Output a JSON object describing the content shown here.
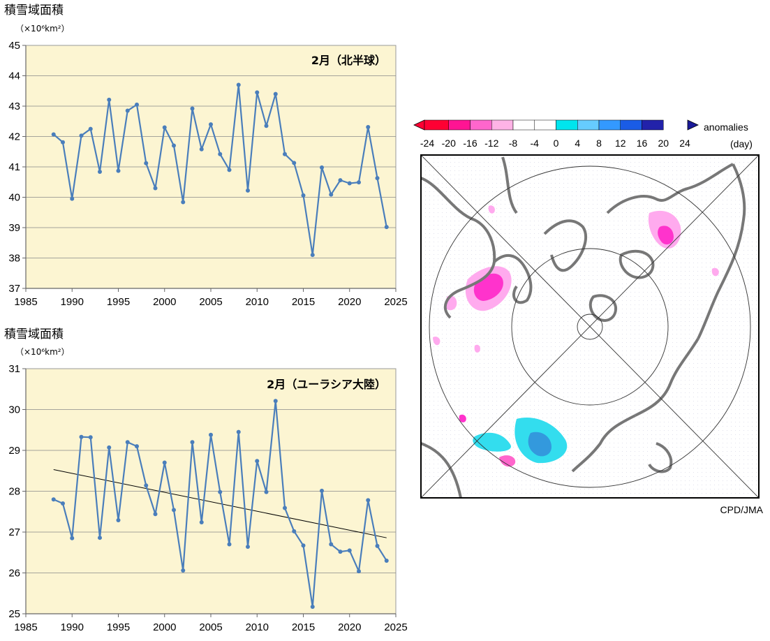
{
  "chart_data": [
    {
      "type": "line",
      "ylabel": "積雪域面積",
      "yunit": "（×10⁶km²）",
      "title": "2月（北半球）",
      "xlim": [
        1985,
        2025
      ],
      "ylim": [
        37,
        45
      ],
      "xticks": [
        "1985",
        "1990",
        "1995",
        "2000",
        "2005",
        "2010",
        "2015",
        "2020",
        "2025"
      ],
      "yticks": [
        "37",
        "38",
        "39",
        "40",
        "41",
        "42",
        "43",
        "44",
        "45"
      ],
      "grid": true,
      "background": "#fcf5d2",
      "line_color": "#4a7ebb",
      "x": [
        1988,
        1989,
        1990,
        1991,
        1992,
        1993,
        1994,
        1995,
        1996,
        1997,
        1998,
        1999,
        2000,
        2001,
        2002,
        2003,
        2004,
        2005,
        2006,
        2007,
        2008,
        2009,
        2010,
        2011,
        2012,
        2013,
        2014,
        2015,
        2016,
        2017,
        2018,
        2019,
        2020,
        2021,
        2022,
        2023,
        2024
      ],
      "series": [
        {
          "values": [
            42.07,
            41.81,
            39.95,
            42.03,
            42.25,
            40.84,
            43.21,
            40.87,
            42.85,
            43.05,
            41.12,
            40.3,
            42.3,
            41.7,
            39.84,
            42.92,
            41.58,
            42.4,
            41.42,
            40.9,
            43.7,
            40.22,
            43.45,
            42.35,
            43.4,
            41.42,
            41.13,
            40.06,
            38.1,
            40.98,
            40.09,
            40.56,
            40.46,
            40.49,
            42.31,
            40.63,
            39.02
          ]
        }
      ]
    },
    {
      "type": "line",
      "ylabel": "積雪域面積",
      "yunit": "（×10⁶km²）",
      "title": "2月（ユーラシア大陸）",
      "xlim": [
        1985,
        2025
      ],
      "ylim": [
        25,
        31
      ],
      "xticks": [
        "1985",
        "1990",
        "1995",
        "2000",
        "2005",
        "2010",
        "2015",
        "2020",
        "2025"
      ],
      "yticks": [
        "25",
        "26",
        "27",
        "28",
        "29",
        "30",
        "31"
      ],
      "grid": true,
      "background": "#fcf5d2",
      "line_color": "#4a7ebb",
      "trend": {
        "x": [
          1988,
          2024
        ],
        "y": [
          28.53,
          26.86
        ],
        "color": "#000000"
      },
      "x": [
        1988,
        1989,
        1990,
        1991,
        1992,
        1993,
        1994,
        1995,
        1996,
        1997,
        1998,
        1999,
        2000,
        2001,
        2002,
        2003,
        2004,
        2005,
        2006,
        2007,
        2008,
        2009,
        2010,
        2011,
        2012,
        2013,
        2014,
        2015,
        2016,
        2017,
        2018,
        2019,
        2020,
        2021,
        2022,
        2023,
        2024
      ],
      "series": [
        {
          "values": [
            27.8,
            27.7,
            26.85,
            29.33,
            29.32,
            26.86,
            29.07,
            27.29,
            29.2,
            29.1,
            28.14,
            27.44,
            28.7,
            27.54,
            26.06,
            29.2,
            27.24,
            29.38,
            27.98,
            26.7,
            29.45,
            26.64,
            28.74,
            27.98,
            30.21,
            27.59,
            27.02,
            26.67,
            25.17,
            28.01,
            26.7,
            26.52,
            26.55,
            26.04,
            27.78,
            26.66,
            26.3
          ]
        }
      ]
    }
  ],
  "map": {
    "colorbar_ticks": [
      "-24",
      "-20",
      "-16",
      "-12",
      "-8",
      "-4",
      "0",
      "4",
      "8",
      "12",
      "16",
      "20",
      "24"
    ],
    "colorbar_colors": [
      "#ff0033",
      "#ff1493",
      "#ff66cc",
      "#ffb3e6",
      "#ffffff",
      "#ffffff",
      "#00e5ee",
      "#66ccff",
      "#3399ff",
      "#1a5ce6",
      "#2222aa"
    ],
    "legend_title": "anomalies",
    "legend_unit": "(day)",
    "credit": "CPD/JMA",
    "negative_color": "#ff33cc",
    "positive_color": "#33ddee"
  }
}
